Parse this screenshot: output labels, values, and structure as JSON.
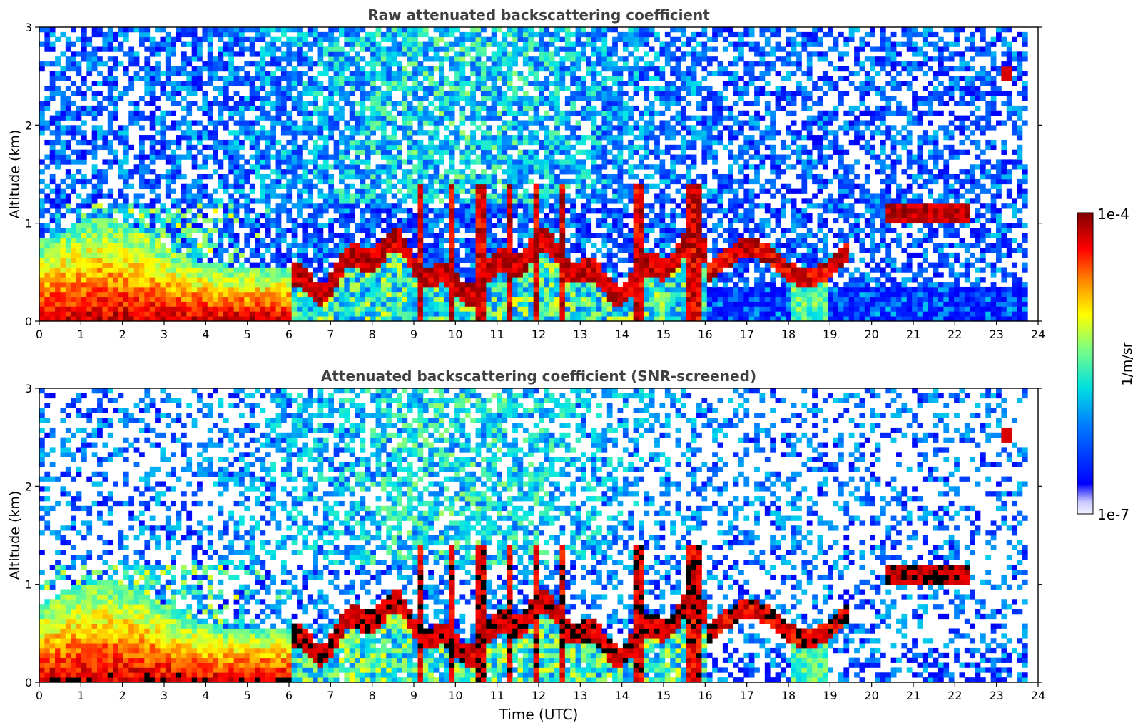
{
  "figure": {
    "panels": [
      {
        "title": "Raw attenuated backscattering coefficient",
        "ylabel": "Altitude (km)",
        "xlabel": ""
      },
      {
        "title": "Attenuated backscattering coefficient (SNR-screened)",
        "ylabel": "Altitude (km)",
        "xlabel": "Time (UTC)"
      }
    ],
    "colorbar": {
      "label": "1/m/sr",
      "max_label": "1e-4",
      "min_label": "1e-7"
    }
  },
  "chart_data": [
    {
      "type": "heatmap",
      "title": "Raw attenuated backscattering coefficient",
      "xlabel": "",
      "ylabel": "Altitude (km)",
      "xlim": [
        0,
        24
      ],
      "ylim": [
        0,
        3
      ],
      "x_ticks": [
        "0",
        "1",
        "2",
        "3",
        "4",
        "5",
        "6",
        "7",
        "8",
        "9",
        "10",
        "11",
        "12",
        "13",
        "14",
        "15",
        "16",
        "17",
        "18",
        "19",
        "20",
        "21",
        "22",
        "23",
        "24"
      ],
      "y_ticks": [
        "0",
        "1",
        "2",
        "3"
      ],
      "colormap": "jet (white below range)",
      "value_range": [
        "1e-7",
        "1e-4"
      ],
      "colorbar_label": "1/m/sr",
      "features": [
        {
          "description": "dense aerosol layer",
          "time": [
            0,
            6.1
          ],
          "altitude": [
            0,
            0.5
          ]
        },
        {
          "description": "boundary-layer clouds",
          "time": [
            6.1,
            16
          ],
          "altitude": [
            0.3,
            1.0
          ]
        },
        {
          "description": "cloud layer",
          "time": [
            20.3,
            22.3
          ],
          "altitude": [
            0.95,
            1.25
          ]
        },
        {
          "description": "elevated cloud",
          "time": [
            23.1,
            23.4
          ],
          "altitude": [
            2.45,
            2.6
          ]
        }
      ]
    },
    {
      "type": "heatmap",
      "title": "Attenuated backscattering coefficient (SNR-screened)",
      "xlabel": "Time (UTC)",
      "ylabel": "Altitude (km)",
      "xlim": [
        0,
        24
      ],
      "ylim": [
        0,
        3
      ],
      "x_ticks": [
        "0",
        "1",
        "2",
        "3",
        "4",
        "5",
        "6",
        "7",
        "8",
        "9",
        "10",
        "11",
        "12",
        "13",
        "14",
        "15",
        "16",
        "17",
        "18",
        "19",
        "20",
        "21",
        "22",
        "23",
        "24"
      ],
      "y_ticks": [
        "0",
        "1",
        "2",
        "3"
      ],
      "colormap": "jet (white below range, black above)",
      "value_range": [
        "1e-7",
        "1e-4"
      ],
      "colorbar_label": "1/m/sr"
    }
  ],
  "colors": {
    "title": "#404040",
    "low": "#0000ff",
    "high": "#8b0000",
    "saturated": "#000000"
  }
}
